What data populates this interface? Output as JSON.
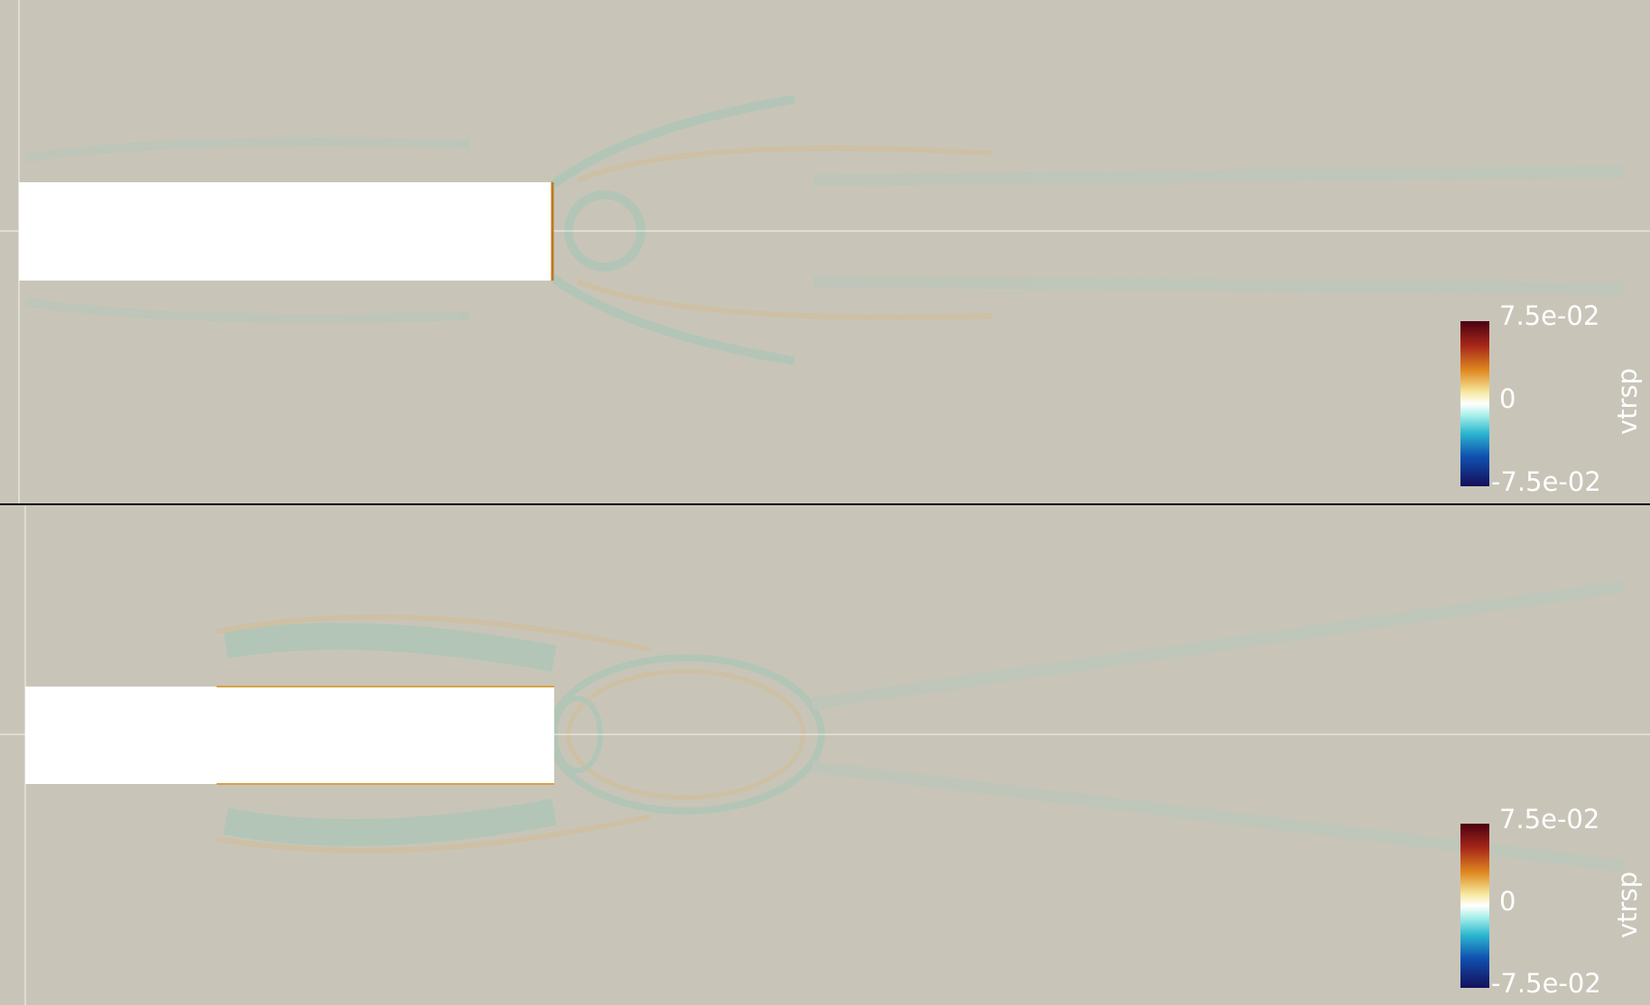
{
  "views": [
    {
      "colorbar": {
        "title": "vtrsp",
        "max_label": "7.5e-02",
        "mid_label": "0",
        "min_label": "-7.5e-02"
      }
    },
    {
      "colorbar": {
        "title": "vtrsp",
        "max_label": "7.5e-02",
        "mid_label": "0",
        "min_label": "-7.5e-02"
      }
    }
  ]
}
